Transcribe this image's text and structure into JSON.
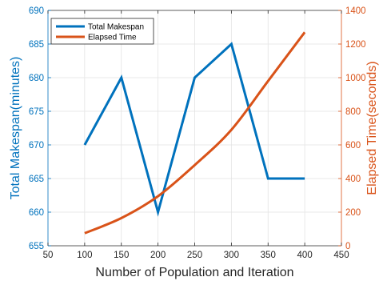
{
  "chart_data": {
    "type": "line",
    "title": "",
    "xlabel": "Number of Population and Iteration",
    "xlim": [
      50,
      450
    ],
    "xticks": [
      50,
      100,
      150,
      200,
      250,
      300,
      350,
      400,
      450
    ],
    "x": [
      100,
      150,
      200,
      250,
      300,
      350,
      400
    ],
    "grid": true,
    "legend_position": "top-left",
    "y_left": {
      "label": "Total Makespan(minutes)",
      "lim": [
        655,
        690
      ],
      "ticks": [
        655,
        660,
        665,
        670,
        675,
        680,
        685,
        690
      ],
      "color": "#0072BD"
    },
    "y_right": {
      "label": "Elapsed Time(seconds)",
      "lim": [
        0,
        1400
      ],
      "ticks": [
        0,
        200,
        400,
        600,
        800,
        1000,
        1200,
        1400
      ],
      "color": "#D95319"
    },
    "series": [
      {
        "name": "Total Makespan",
        "axis": "left",
        "color": "#0072BD",
        "values": [
          670,
          680,
          660,
          680,
          685,
          665,
          665
        ]
      },
      {
        "name": "Elapsed Time",
        "axis": "right",
        "color": "#D95319",
        "values": [
          75,
          165,
          295,
          480,
          690,
          980,
          1270
        ]
      }
    ]
  }
}
